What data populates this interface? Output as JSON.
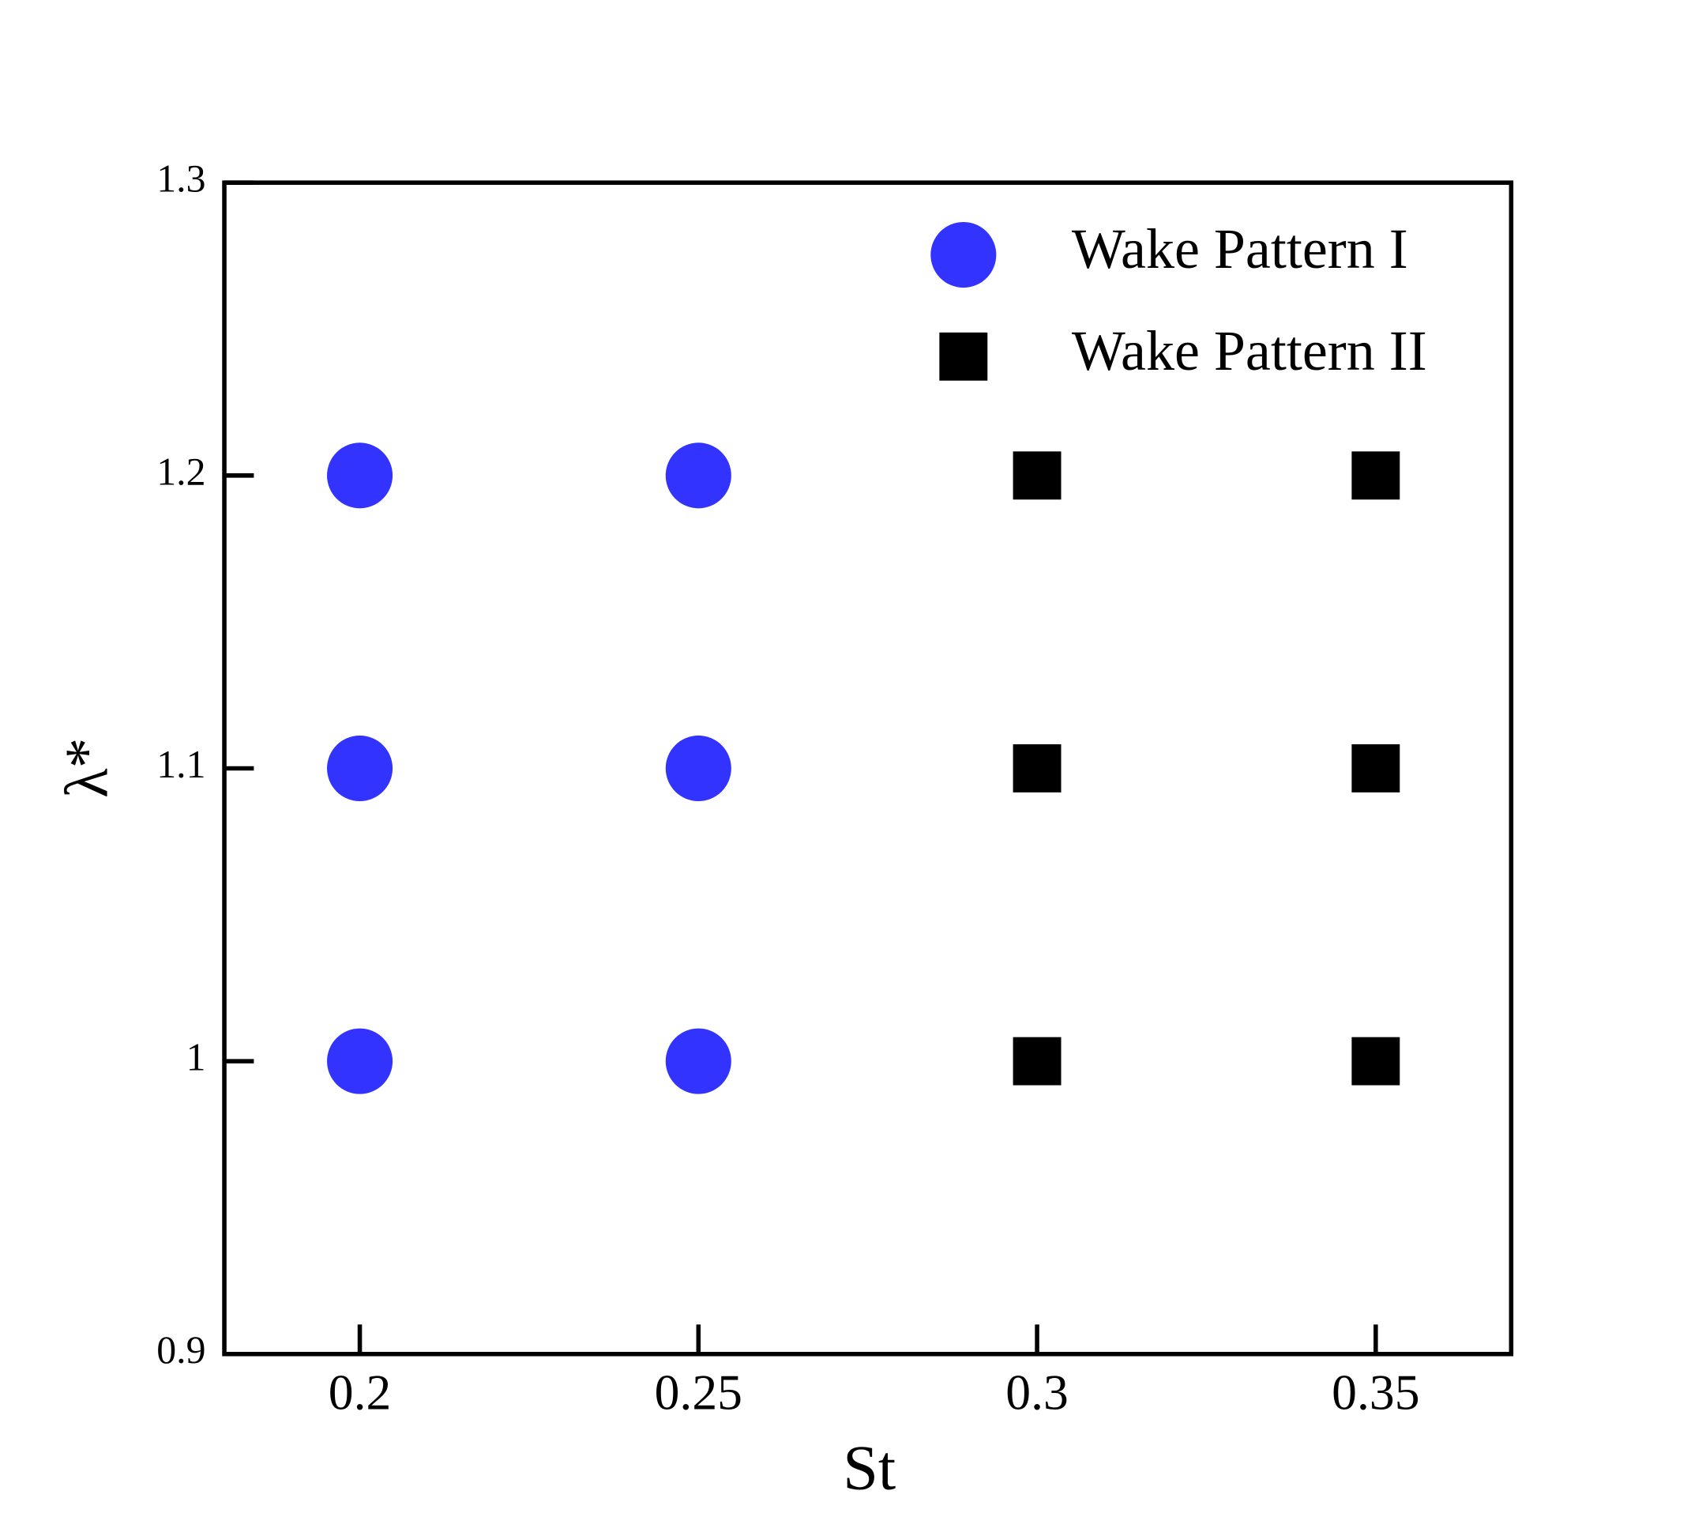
{
  "chart_data": {
    "type": "scatter",
    "x_label": "St",
    "y_label": "λ*",
    "xlim": [
      0.18,
      0.37
    ],
    "ylim": [
      0.9,
      1.3
    ],
    "xticks": [
      0.2,
      0.25,
      0.3,
      0.35
    ],
    "yticks": [
      0.9,
      1,
      1.1,
      1.2,
      1.3
    ],
    "grid": false,
    "legend": "upper right",
    "series": [
      {
        "name": "Wake Pattern I",
        "color": "#3333ff",
        "marker": "circle",
        "x": [
          0.2,
          0.2,
          0.2,
          0.25,
          0.25,
          0.25
        ],
        "values": [
          1,
          1.1,
          1.2,
          1,
          1.1,
          1.2
        ]
      },
      {
        "name": "Wake Pattern II",
        "color": "#000000",
        "marker": "square",
        "x": [
          0.3,
          0.3,
          0.3,
          0.35,
          0.35,
          0.35
        ],
        "values": [
          1,
          1.1,
          1.2,
          1,
          1.1,
          1.2
        ]
      }
    ]
  }
}
